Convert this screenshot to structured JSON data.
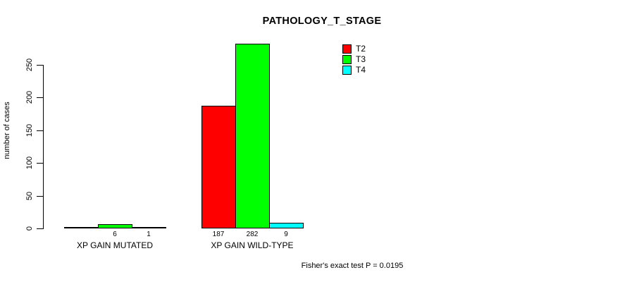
{
  "title": "PATHOLOGY_T_STAGE",
  "footnote": "Fisher's exact test P = 0.0195",
  "chart_data": {
    "type": "bar",
    "title": "PATHOLOGY_T_STAGE",
    "xlabel": "",
    "ylabel": "number of cases",
    "yticks": [
      0,
      50,
      100,
      150,
      200,
      250
    ],
    "ylim": [
      0,
      290
    ],
    "grid": false,
    "legend_position": "top-right",
    "categories": [
      "XP GAIN MUTATED",
      "XP GAIN WILD-TYPE"
    ],
    "series": [
      {
        "name": "T2",
        "color": "#ff0000",
        "values": [
          0,
          187
        ],
        "bar_labels": [
          "",
          "187"
        ]
      },
      {
        "name": "T3",
        "color": "#00ff00",
        "values": [
          6,
          282
        ],
        "bar_labels": [
          "6",
          "282"
        ]
      },
      {
        "name": "T4",
        "color": "#00ffff",
        "values": [
          1,
          9
        ],
        "bar_labels": [
          "1",
          "9"
        ]
      }
    ],
    "footnote": "Fisher's exact test P = 0.0195"
  }
}
